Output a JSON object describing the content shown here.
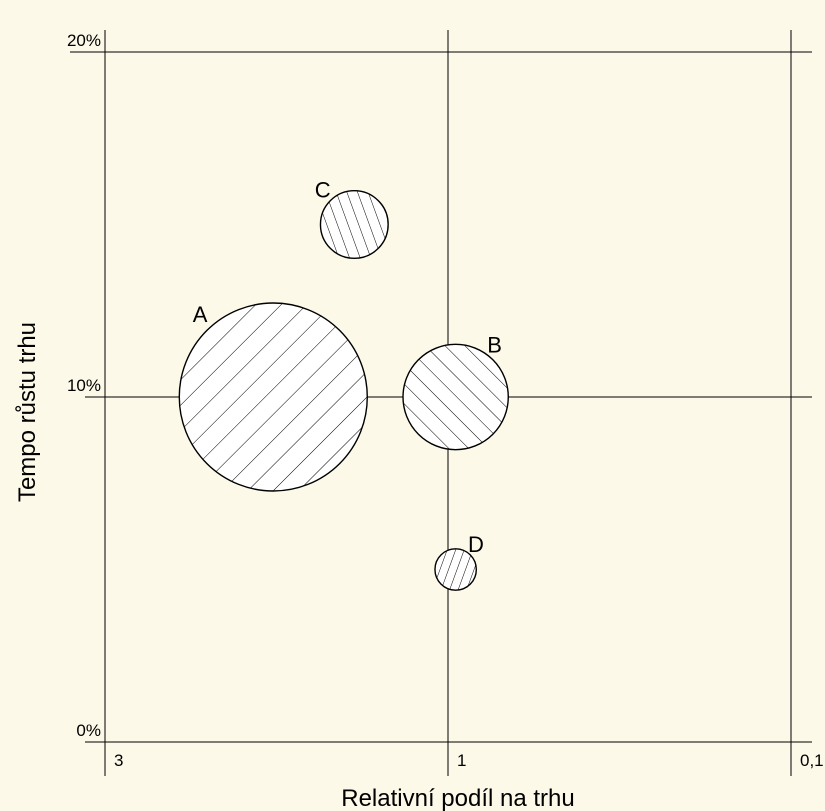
{
  "colors": {
    "plot_background": "#fcf9e8",
    "line": "#000000",
    "bubble_fill": "#ffffff"
  },
  "chart_data": {
    "type": "scatter",
    "subtype": "bubble",
    "xlabel": "Relativní podíl na trhu",
    "ylabel": "Tempo růstu trhu",
    "x_scale": "log",
    "x_reversed": true,
    "xlim": [
      3,
      0.1
    ],
    "ylim": [
      0,
      20
    ],
    "grid": true,
    "x_gridlines": [
      3,
      1,
      0.1
    ],
    "y_gridlines": [
      0,
      10,
      20
    ],
    "x_ticks": [
      {
        "value": 3,
        "label": "3"
      },
      {
        "value": 1,
        "label": "1"
      },
      {
        "value": 0.1,
        "label": "0,1"
      }
    ],
    "y_ticks": [
      {
        "value": 0,
        "label": "0%"
      },
      {
        "value": 10,
        "label": "10%"
      },
      {
        "value": 20,
        "label": "20%"
      }
    ],
    "points": [
      {
        "label": "A",
        "x": 1.75,
        "y": 10,
        "radius": 1,
        "hatch": "forward"
      },
      {
        "label": "B",
        "x": 0.95,
        "y": 10,
        "radius": 0.56,
        "hatch": "backward"
      },
      {
        "label": "C",
        "x": 1.35,
        "y": 15,
        "radius": 0.36,
        "hatch": "steep-backward"
      },
      {
        "label": "D",
        "x": 0.95,
        "y": 5,
        "radius": 0.22,
        "hatch": "steep-forward"
      }
    ]
  }
}
